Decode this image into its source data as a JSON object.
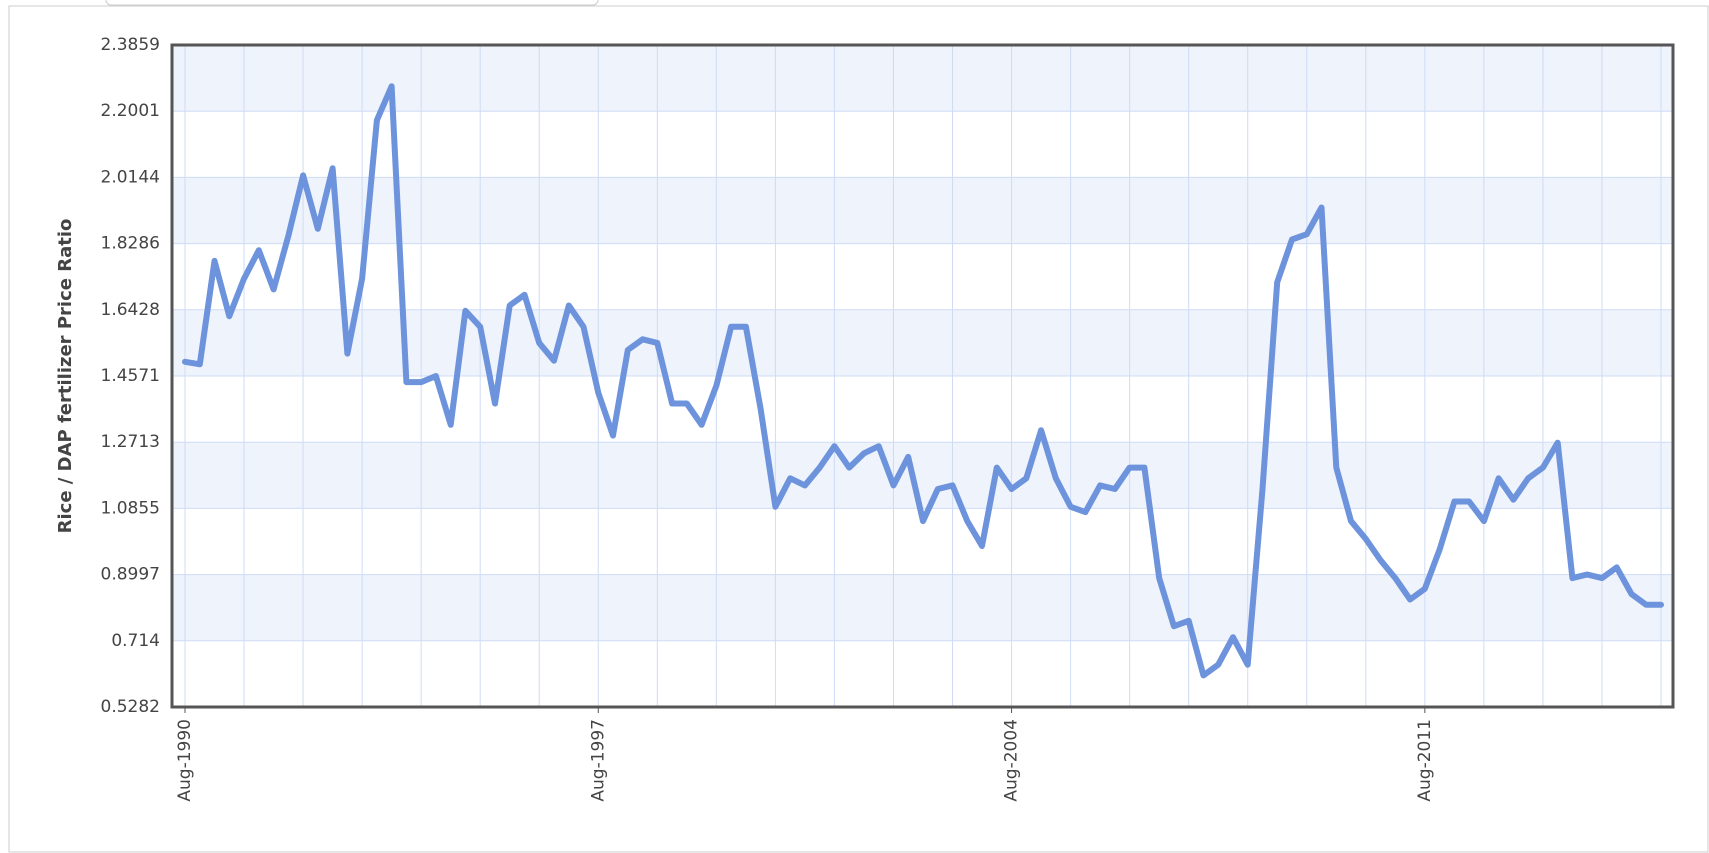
{
  "chart_data": {
    "type": "line",
    "y_label": "Rice / DAP fertilizer Price Ratio",
    "categories": [
      "Aug-1990",
      null,
      null,
      null,
      null,
      null,
      null,
      null,
      null,
      null,
      null,
      null,
      null,
      null,
      null,
      null,
      null,
      null,
      null,
      null,
      null,
      null,
      null,
      null,
      null,
      null,
      null,
      null,
      "Aug-1997",
      null,
      null,
      null,
      null,
      null,
      null,
      null,
      null,
      null,
      null,
      null,
      null,
      null,
      null,
      null,
      null,
      null,
      null,
      null,
      null,
      null,
      null,
      null,
      null,
      null,
      null,
      null,
      "Aug-2004",
      null,
      null,
      null,
      null,
      null,
      null,
      null,
      null,
      null,
      null,
      null,
      null,
      null,
      null,
      null,
      null,
      null,
      null,
      null,
      null,
      null,
      null,
      null,
      null,
      null,
      null,
      null,
      "Aug-2011",
      null,
      null,
      null,
      null,
      null,
      null,
      null,
      null,
      null,
      null,
      null,
      null,
      null,
      null,
      null,
      null
    ],
    "series": [
      {
        "name": "Rice / DAP fertilizer Price Ratio",
        "color": "#6d93dc",
        "values": [
          1.497,
          1.49,
          1.78,
          1.625,
          1.73,
          1.81,
          1.7,
          1.85,
          2.02,
          1.87,
          2.04,
          1.52,
          1.73,
          2.175,
          2.27,
          1.44,
          1.44,
          1.457,
          1.32,
          1.64,
          1.595,
          1.38,
          1.655,
          1.685,
          1.55,
          1.5,
          1.655,
          1.595,
          1.41,
          1.29,
          1.53,
          1.56,
          1.55,
          1.38,
          1.38,
          1.32,
          1.43,
          1.595,
          1.595,
          1.365,
          1.09,
          1.17,
          1.15,
          1.2,
          1.26,
          1.2,
          1.24,
          1.26,
          1.15,
          1.23,
          1.05,
          1.14,
          1.15,
          1.05,
          0.98,
          1.2,
          1.14,
          1.17,
          1.305,
          1.17,
          1.09,
          1.075,
          1.15,
          1.14,
          1.2,
          1.2,
          0.89,
          0.755,
          0.77,
          0.617,
          0.647,
          0.724,
          0.647,
          1.14,
          1.72,
          1.84,
          1.855,
          1.93,
          1.2,
          1.05,
          1.0,
          0.94,
          0.89,
          0.83,
          0.86,
          0.97,
          1.105,
          1.105,
          1.05,
          1.17,
          1.11,
          1.17,
          1.2,
          1.27,
          0.89,
          0.9,
          0.89,
          0.92,
          0.845,
          0.815,
          0.815
        ]
      }
    ],
    "ylim": [
      0.5282,
      2.3859
    ],
    "yticks": [
      0.5282,
      0.714,
      0.8997,
      1.0855,
      1.2713,
      1.4571,
      1.6428,
      1.8286,
      2.0144,
      2.2001,
      2.3859
    ],
    "grid": true
  }
}
